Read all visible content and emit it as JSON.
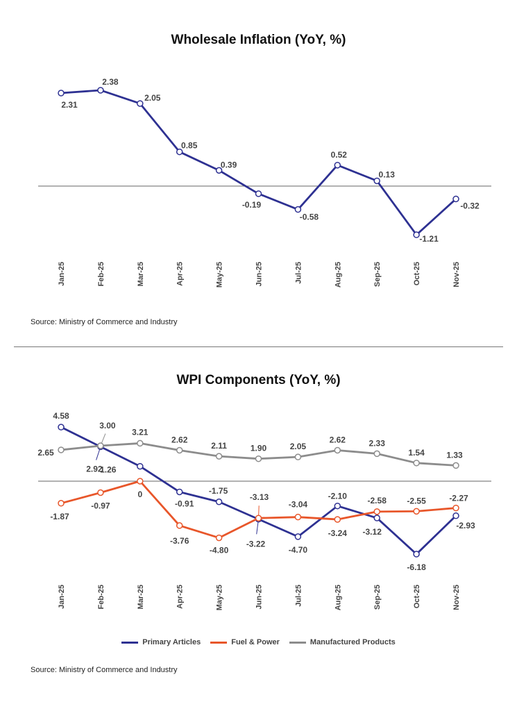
{
  "chart_data": [
    {
      "type": "line",
      "title": "Wholesale Inflation (YoY, %)",
      "categories": [
        "Jan-25",
        "Feb-25",
        "Mar-25",
        "Apr-25",
        "May-25",
        "Jun-25",
        "Jul-25",
        "Aug-25",
        "Sep-25",
        "Oct-25",
        "Nov-25"
      ],
      "series": [
        {
          "values": [
            2.31,
            2.38,
            2.05,
            0.85,
            0.39,
            -0.19,
            -0.58,
            0.52,
            0.13,
            -1.21,
            -0.32
          ],
          "color": "#2e3192"
        }
      ],
      "labels": [
        "2.31",
        "2.38",
        "2.05",
        "0.85",
        "0.39",
        "-0.19",
        "-0.58",
        "0.52",
        "0.13",
        "-1.21",
        "-0.32"
      ],
      "zero_line": true,
      "grid": false,
      "source": "Source: Ministry of Commerce and Industry"
    },
    {
      "type": "line",
      "title": "WPI Components (YoY, %)",
      "categories": [
        "Jan-25",
        "Feb-25",
        "Mar-25",
        "Apr-25",
        "May-25",
        "Jun-25",
        "Jul-25",
        "Aug-25",
        "Sep-25",
        "Oct-25",
        "Nov-25"
      ],
      "series": [
        {
          "name": "Primary Articles",
          "color": "#2e3192",
          "values": [
            4.58,
            2.92,
            1.26,
            -0.91,
            -1.75,
            -3.22,
            -4.7,
            -2.1,
            -3.12,
            -6.18,
            -2.93
          ],
          "labels": [
            "4.58",
            "2.92",
            "1.26",
            "-0.91",
            "-1.75",
            "-3.22",
            "-4.70",
            "-2.10",
            "-3.12",
            "-6.18",
            "-2.93"
          ]
        },
        {
          "name": "Fuel & Power",
          "color": "#e8562a",
          "values": [
            -1.87,
            -0.97,
            0,
            -3.76,
            -4.8,
            -3.13,
            -3.04,
            -3.24,
            -2.58,
            -2.55,
            -2.27
          ],
          "labels": [
            "-1.87",
            "-0.97",
            "0",
            "-3.76",
            "-4.80",
            "-3.13",
            "-3.04",
            "-3.24",
            "-2.58",
            "-2.55",
            "-2.27"
          ]
        },
        {
          "name": "Manufactured Products",
          "color": "#8c8c8c",
          "values": [
            2.65,
            3.0,
            3.21,
            2.62,
            2.11,
            1.9,
            2.05,
            2.62,
            2.33,
            1.54,
            1.33
          ],
          "labels": [
            "2.65",
            "3.00",
            "3.21",
            "2.62",
            "2.11",
            "1.90",
            "2.05",
            "2.62",
            "2.33",
            "1.54",
            "1.33"
          ]
        }
      ],
      "zero_line": true,
      "grid": false,
      "legend_position": "bottom",
      "source": "Source: Ministry of Commerce and Industry"
    }
  ]
}
